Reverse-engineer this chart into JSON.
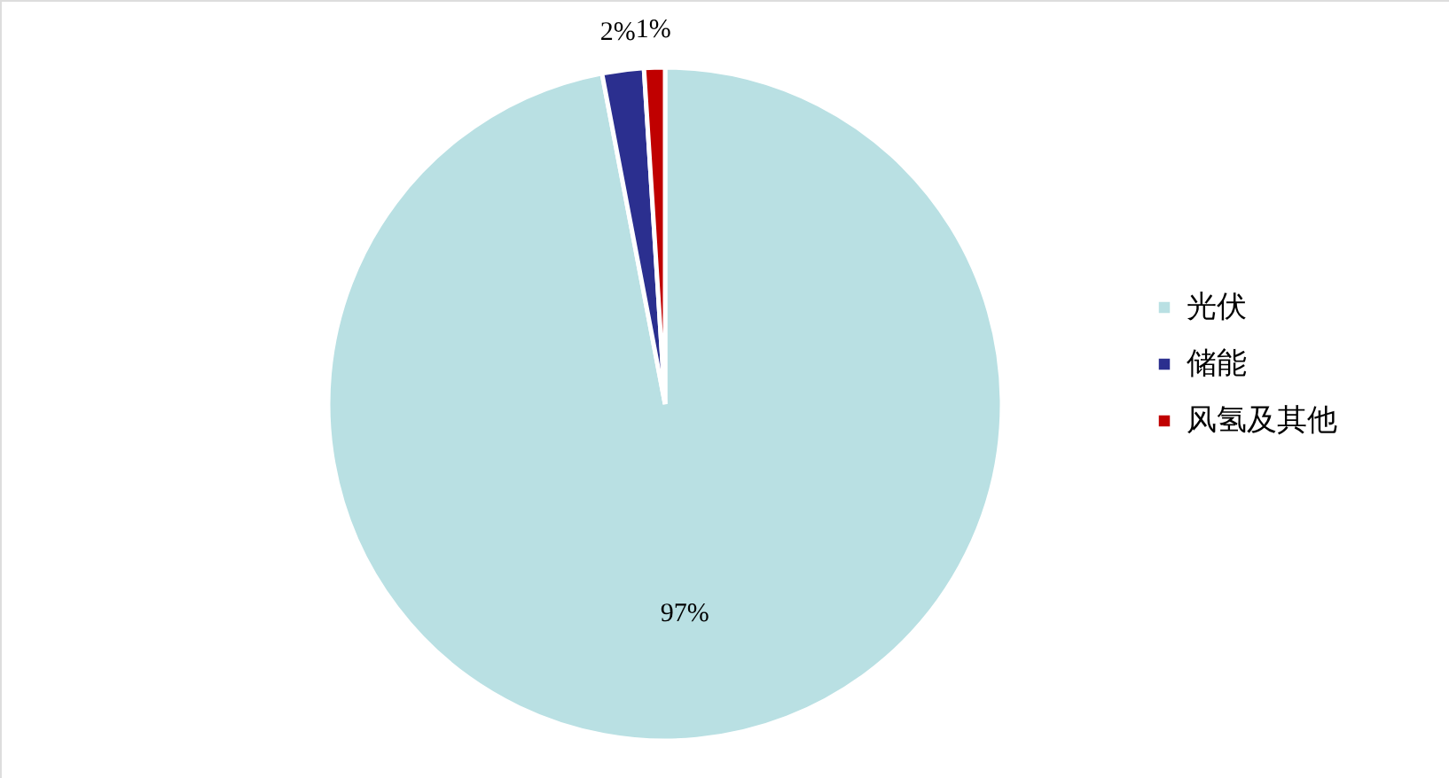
{
  "chart_data": {
    "type": "pie",
    "categories": [
      "光伏",
      "储能",
      "风氢及其他"
    ],
    "values": [
      97,
      2,
      1
    ],
    "colors": [
      "#b9e0e3",
      "#2b2f8f",
      "#c00000"
    ],
    "value_labels": [
      "97%",
      "2%",
      "1%"
    ],
    "legend": "right"
  }
}
